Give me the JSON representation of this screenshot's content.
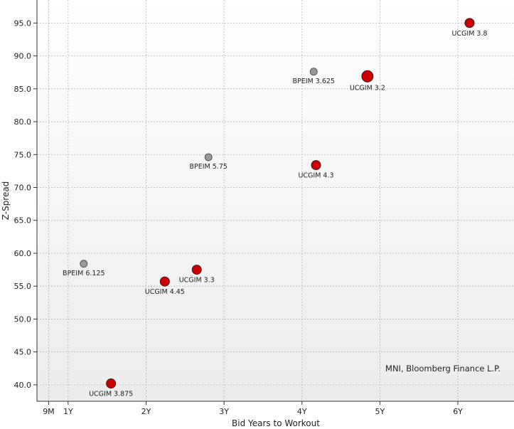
{
  "chart_data": {
    "type": "scatter",
    "title": "",
    "xlabel": "Bid Years to Workout",
    "ylabel": "Z-Spread",
    "xlim": [
      0.6,
      6.72
    ],
    "ylim": [
      37.5,
      98.5
    ],
    "grid": true,
    "source_note": "MNI, Bloomberg Finance L.P.",
    "x_ticks": [
      {
        "value": 0.75,
        "label": "9M"
      },
      {
        "value": 1,
        "label": "1Y"
      },
      {
        "value": 2,
        "label": "2Y"
      },
      {
        "value": 3,
        "label": "3Y"
      },
      {
        "value": 4,
        "label": "4Y"
      },
      {
        "value": 5,
        "label": "5Y"
      },
      {
        "value": 6,
        "label": "6Y"
      }
    ],
    "y_ticks": [
      {
        "value": 40,
        "label": "40.0"
      },
      {
        "value": 45,
        "label": "45.0"
      },
      {
        "value": 50,
        "label": "50.0"
      },
      {
        "value": 55,
        "label": "55.0"
      },
      {
        "value": 60,
        "label": "60.0"
      },
      {
        "value": 65,
        "label": "65.0"
      },
      {
        "value": 70,
        "label": "70.0"
      },
      {
        "value": 75,
        "label": "75.0"
      },
      {
        "value": 80,
        "label": "80.0"
      },
      {
        "value": 85,
        "label": "85.0"
      },
      {
        "value": 90,
        "label": "90.0"
      },
      {
        "value": 95,
        "label": "95.0"
      }
    ],
    "series": [
      {
        "name": "UCGIM",
        "color": "#cc0000",
        "points": [
          {
            "label": "UCGIM 3.875",
            "x": 1.55,
            "y": 40.2
          },
          {
            "label": "UCGIM 4.45",
            "x": 2.24,
            "y": 55.7
          },
          {
            "label": "UCGIM 3.3",
            "x": 2.65,
            "y": 57.5
          },
          {
            "label": "UCGIM 4.3",
            "x": 4.18,
            "y": 73.4
          },
          {
            "label": "UCGIM 3.2",
            "x": 4.84,
            "y": 86.9
          },
          {
            "label": "UCGIM 3.8",
            "x": 6.15,
            "y": 95.0
          }
        ]
      },
      {
        "name": "BPEIM",
        "color": "#999999",
        "points": [
          {
            "label": "BPEIM 6.125",
            "x": 1.2,
            "y": 58.4
          },
          {
            "label": "BPEIM 5.75",
            "x": 2.8,
            "y": 74.6
          },
          {
            "label": "BPEIM 3.625",
            "x": 4.15,
            "y": 87.6
          }
        ]
      }
    ]
  }
}
